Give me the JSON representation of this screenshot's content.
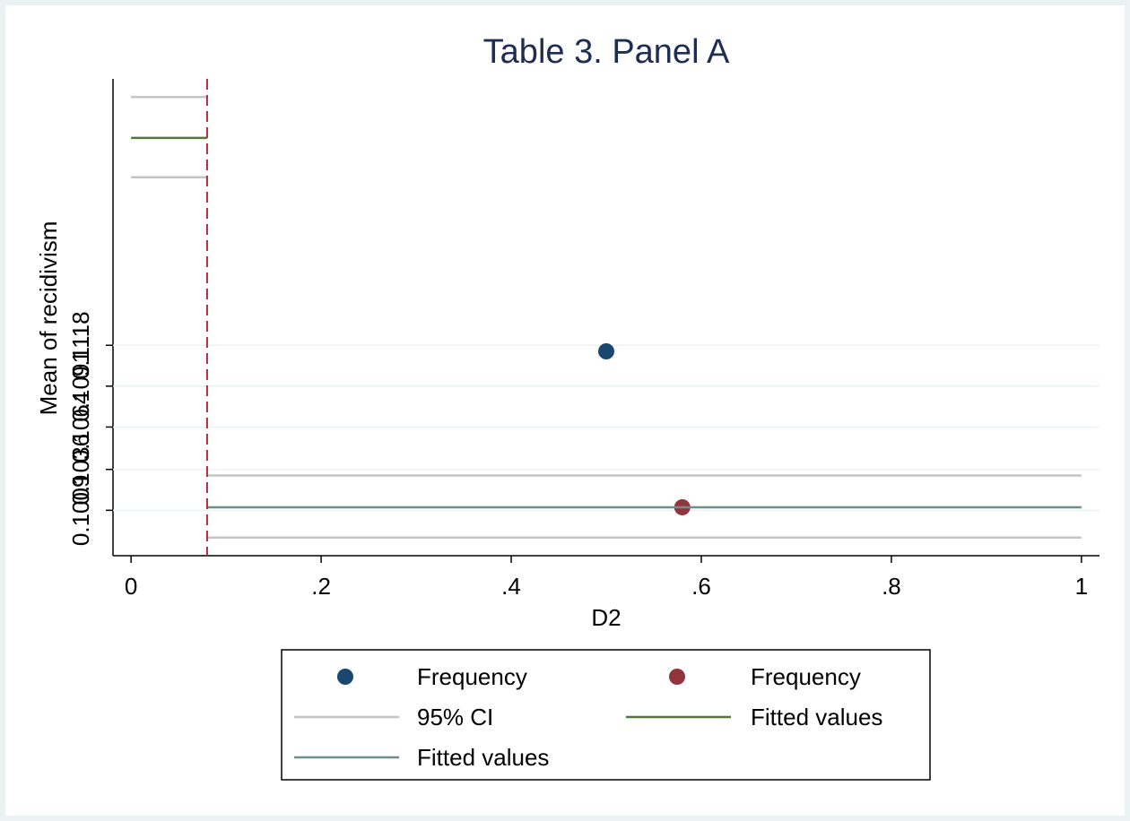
{
  "chart_data": {
    "type": "scatter",
    "title": "Table 3. Panel A",
    "x_label": "D2",
    "y_label": "Mean of recidivism",
    "xlim": [
      -0.019,
      1.019
    ],
    "ylim": [
      0.0979,
      0.1294
    ],
    "xticks": [
      {
        "value": 0,
        "label": "0"
      },
      {
        "value": 0.2,
        "label": ".2"
      },
      {
        "value": 0.4,
        "label": ".4"
      },
      {
        "value": 0.6,
        "label": ".6"
      },
      {
        "value": 0.8,
        "label": ".8"
      },
      {
        "value": 1,
        "label": "1"
      }
    ],
    "yticks": [
      0.1009,
      0.1036,
      0.1064,
      0.1091,
      0.1118
    ],
    "grid": true,
    "xline": 0.08,
    "xline_color": "#b22a3a",
    "series": [
      {
        "name": "Frequency",
        "kind": "marker",
        "color": "#1a476f",
        "x": [
          0.5
        ],
        "values": [
          0.1114
        ]
      },
      {
        "name": "Frequency",
        "kind": "marker",
        "color": "#90353b",
        "x": [
          0.58
        ],
        "values": [
          0.1011
        ]
      },
      {
        "name": "95% CI",
        "kind": "line",
        "color": "#c4c4c4",
        "x": [
          0,
          0.08,
          null,
          0,
          0.08,
          null,
          0.08,
          1,
          null,
          0.08,
          1
        ],
        "values": [
          0.1282,
          0.1282,
          null,
          0.1229,
          0.1229,
          null,
          0.1032,
          0.1032,
          null,
          0.0991,
          0.0991
        ]
      },
      {
        "name": "Fitted values",
        "kind": "line",
        "color": "#55753b",
        "x": [
          0,
          0.08
        ],
        "values": [
          0.1255,
          0.1255
        ]
      },
      {
        "name": "Fitted values",
        "kind": "line",
        "color": "#6d8f8c",
        "x": [
          0.08,
          1
        ],
        "values": [
          0.1011,
          0.1011
        ]
      }
    ]
  }
}
